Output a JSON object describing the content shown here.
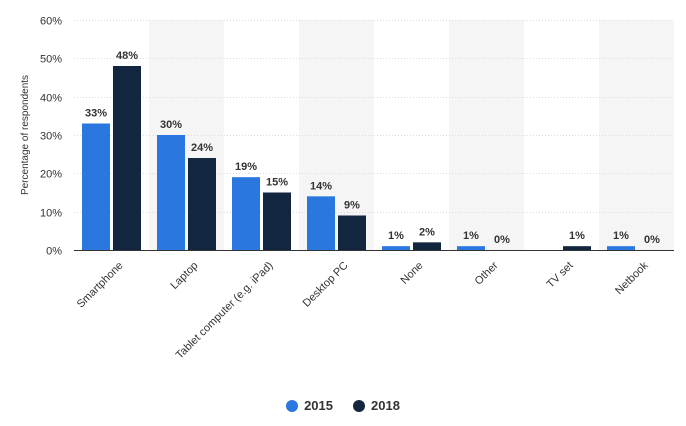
{
  "chart_data": {
    "type": "bar",
    "title": "",
    "xlabel": "",
    "ylabel": "Percentage of respondents",
    "ylim": [
      0,
      60
    ],
    "yticks": [
      "0%",
      "10%",
      "20%",
      "30%",
      "40%",
      "50%",
      "60%"
    ],
    "ytick_values": [
      0,
      10,
      20,
      30,
      40,
      50,
      60
    ],
    "grid": true,
    "legend_position": "bottom",
    "categories": [
      "Smartphone",
      "Laptop",
      "Tablet computer (e.g. iPad)",
      "Desktop PC",
      "None",
      "Other",
      "TV set",
      "Netbook"
    ],
    "series": [
      {
        "name": "2015",
        "color": "#2a77e0",
        "values": [
          33,
          30,
          19,
          14,
          1,
          1,
          null,
          1
        ],
        "labels": [
          "33%",
          "30%",
          "19%",
          "14%",
          "1%",
          "1%",
          "",
          "1%"
        ]
      },
      {
        "name": "2018",
        "color": "#12263f",
        "values": [
          48,
          24,
          15,
          9,
          2,
          0,
          1,
          0
        ],
        "labels": [
          "48%",
          "24%",
          "15%",
          "9%",
          "2%",
          "0%",
          "1%",
          "0%"
        ]
      }
    ]
  }
}
